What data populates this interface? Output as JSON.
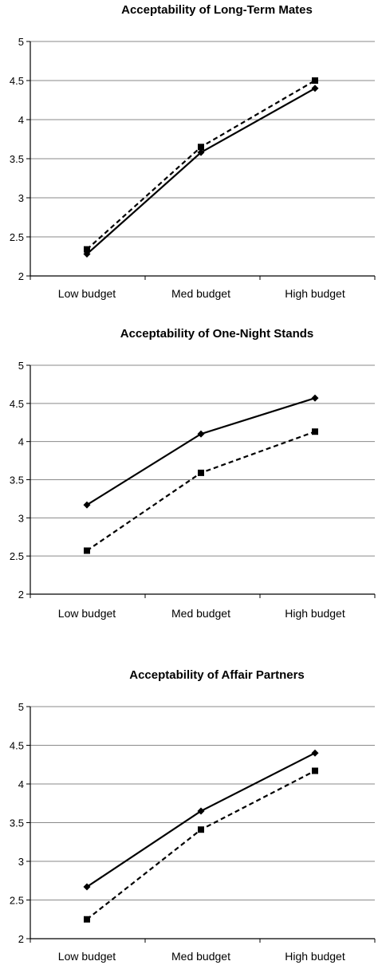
{
  "chart_data": [
    {
      "type": "line",
      "title": "Acceptability of Long-Term Mates",
      "categories": [
        "Low budget",
        "Med budget",
        "High budget"
      ],
      "ylim": [
        2,
        5
      ],
      "yticks": [
        "2",
        "2.5",
        "3",
        "3.5",
        "4",
        "4.5",
        "5"
      ],
      "grid": true,
      "series": [
        {
          "style": "solid",
          "marker": "diamond",
          "values": [
            2.28,
            3.58,
            4.4
          ]
        },
        {
          "style": "dashed",
          "marker": "square",
          "values": [
            2.34,
            3.65,
            4.5
          ]
        }
      ]
    },
    {
      "type": "line",
      "title": "Acceptability of One-Night Stands",
      "categories": [
        "Low budget",
        "Med budget",
        "High budget"
      ],
      "ylim": [
        2,
        5
      ],
      "yticks": [
        "2",
        "2.5",
        "3",
        "3.5",
        "4",
        "4.5",
        "5"
      ],
      "grid": true,
      "series": [
        {
          "style": "solid",
          "marker": "diamond",
          "values": [
            3.17,
            4.1,
            4.57
          ]
        },
        {
          "style": "dashed",
          "marker": "square",
          "values": [
            2.57,
            3.59,
            4.13
          ]
        }
      ]
    },
    {
      "type": "line",
      "title": "Acceptability of Affair Partners",
      "categories": [
        "Low budget",
        "Med budget",
        "High budget"
      ],
      "ylim": [
        2,
        5
      ],
      "yticks": [
        "2",
        "2.5",
        "3",
        "3.5",
        "4",
        "4.5",
        "5"
      ],
      "grid": true,
      "series": [
        {
          "style": "solid",
          "marker": "diamond",
          "values": [
            2.67,
            3.65,
            4.4
          ]
        },
        {
          "style": "dashed",
          "marker": "square",
          "values": [
            2.25,
            3.41,
            4.17
          ]
        }
      ]
    }
  ]
}
